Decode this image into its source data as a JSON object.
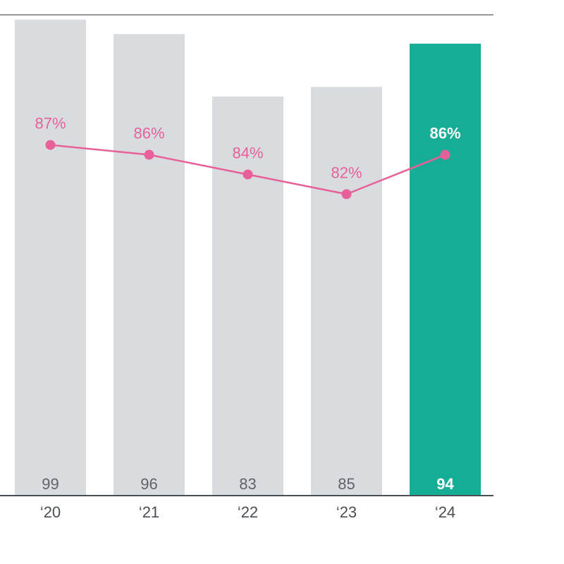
{
  "chart_data": {
    "type": "bar",
    "categories": [
      "‘20",
      "‘21",
      "‘22",
      "‘23",
      "‘24"
    ],
    "values": [
      99,
      96,
      83,
      85,
      94
    ],
    "value_labels": [
      "99",
      "96",
      "83",
      "85",
      "94"
    ],
    "highlight_index": 4,
    "ylim": [
      0,
      100
    ],
    "grid": false,
    "line": {
      "values": [
        87,
        86,
        84,
        82,
        86
      ],
      "labels": [
        "87%",
        "86%",
        "84%",
        "82%",
        "86%"
      ],
      "ylim": [
        0,
        100
      ]
    },
    "colors": {
      "bar": "#d9dcdf",
      "bar_highlight": "#16ad96",
      "line": "#e8609a",
      "axis": "#4a4f55",
      "top_rule": "#333333"
    }
  }
}
